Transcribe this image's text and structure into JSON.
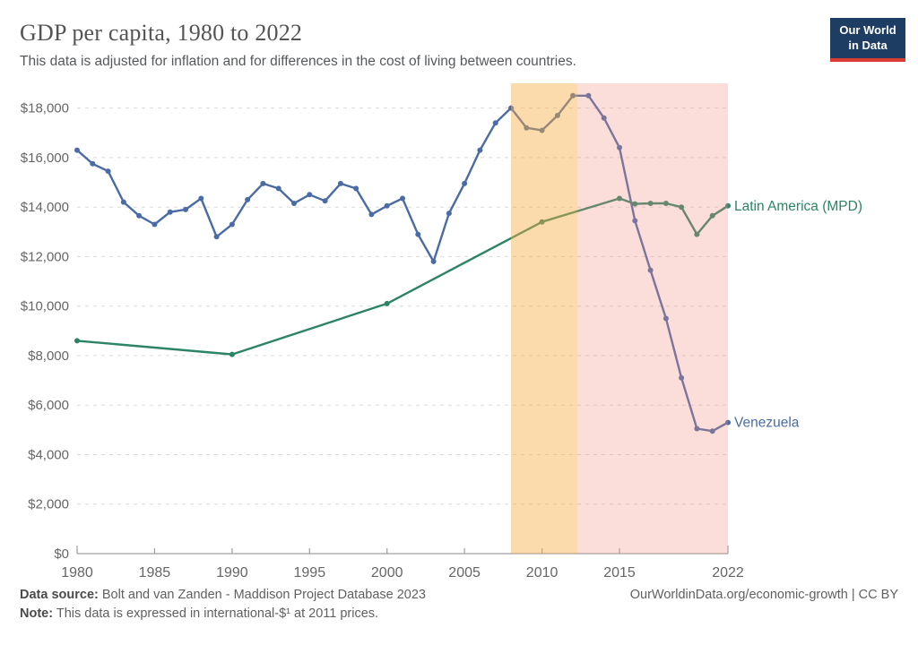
{
  "header": {
    "title": "GDP per capita, 1980 to 2022",
    "subtitle": "This data is adjusted for inflation and for differences in the cost of living between countries.",
    "logo": {
      "line1": "Our World",
      "line2": "in Data",
      "bg_color": "#1d3d63",
      "accent_color": "#dc3d33"
    }
  },
  "chart_data": {
    "type": "line",
    "title": "GDP per capita, 1980 to 2022",
    "x_range": [
      1980,
      2022
    ],
    "y_range": [
      0,
      19000
    ],
    "x_ticks": [
      1980,
      1985,
      1990,
      1995,
      2000,
      2005,
      2010,
      2015,
      2022
    ],
    "y_ticks": [
      0,
      2000,
      4000,
      6000,
      8000,
      10000,
      12000,
      14000,
      16000,
      18000
    ],
    "y_prefix": "$",
    "grid": "horizontal-dashed",
    "legend": "end-of-line-labels",
    "series": [
      {
        "name": "Venezuela",
        "color": "#4a6ba5",
        "x": [
          1980,
          1981,
          1982,
          1983,
          1984,
          1985,
          1986,
          1987,
          1988,
          1989,
          1990,
          1991,
          1992,
          1993,
          1994,
          1995,
          1996,
          1997,
          1998,
          1999,
          2000,
          2001,
          2002,
          2003,
          2004,
          2005,
          2006,
          2007,
          2008,
          2009,
          2010,
          2011,
          2012,
          2013,
          2014,
          2015,
          2016,
          2017,
          2018,
          2019,
          2020,
          2021,
          2022
        ],
        "values": [
          16300,
          15750,
          15450,
          14200,
          13650,
          13300,
          13800,
          13900,
          14350,
          12800,
          13300,
          14300,
          14950,
          14750,
          14150,
          14500,
          14250,
          14950,
          14750,
          13700,
          14050,
          14350,
          12900,
          11800,
          13750,
          14950,
          16300,
          17400,
          18000,
          17200,
          17100,
          17700,
          18500,
          18500,
          17600,
          16400,
          13450,
          11450,
          9500,
          7100,
          5050,
          4950,
          5300
        ]
      },
      {
        "name": "Latin America (MPD)",
        "color": "#2c8465",
        "x": [
          1980,
          1990,
          2000,
          2010,
          2015,
          2016,
          2017,
          2018,
          2019,
          2020,
          2021,
          2022
        ],
        "values": [
          8600,
          8050,
          10100,
          13400,
          14350,
          14130,
          14150,
          14150,
          14000,
          12900,
          13650,
          14050
        ]
      }
    ],
    "bands": [
      {
        "name": "highlight-band-orange",
        "from": 2008,
        "to": 2012.3,
        "color": "rgba(246,173,70,0.45)"
      },
      {
        "name": "highlight-band-pink",
        "from": 2012.3,
        "to": 2022,
        "color": "rgba(242,142,132,0.30)"
      }
    ]
  },
  "footer": {
    "source_label": "Data source:",
    "source_text": "Bolt and van Zanden - Maddison Project Database 2023",
    "note_label": "Note:",
    "note_text": "This data is expressed in international-$¹ at 2011 prices.",
    "rights": "OurWorldinData.org/economic-growth | CC BY"
  }
}
